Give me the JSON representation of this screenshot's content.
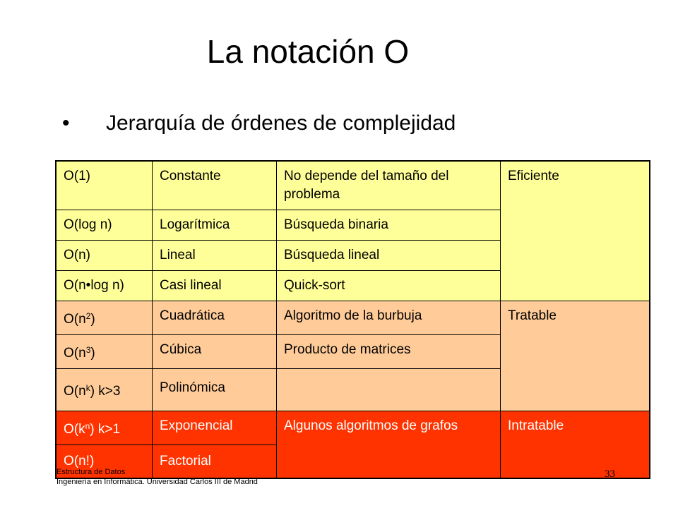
{
  "title": "La notación O",
  "bullet": "•",
  "subtitle": "Jerarquía de órdenes de complejidad",
  "colors": {
    "efficient": "#ffff99",
    "tractable": "#ffcc99",
    "intractable": "#ff3300"
  },
  "rows": [
    {
      "order": "O(1)",
      "name": "Constante",
      "example": "No depende del tamaño del problema",
      "class": "Eficiente"
    },
    {
      "order": "O(log n)",
      "name": "Logarítmica",
      "example": "Búsqueda binaria"
    },
    {
      "order": "O(n)",
      "name": "Lineal",
      "example": "Búsqueda lineal"
    },
    {
      "order": "O(n•log n)",
      "name": "Casi lineal",
      "example": "Quick-sort"
    },
    {
      "order_base": "O(n",
      "order_sup": "2",
      "order_tail": ")",
      "name": "Cuadrática",
      "example": "Algoritmo de la burbuja",
      "class": "Tratable"
    },
    {
      "order_base": "O(n",
      "order_sup": "3",
      "order_tail": ")",
      "name": "Cúbica",
      "example": "Producto de matrices"
    },
    {
      "order_base": "O(n",
      "order_sup": "k",
      "order_tail": ") k>3",
      "name": "Polinómica",
      "example": ""
    },
    {
      "order_base": "O(k",
      "order_sup": "n",
      "order_tail": ") k>1",
      "name": "Exponencial",
      "example": "Algunos algoritmos de grafos",
      "class": "Intratable"
    },
    {
      "order": "O(n!)",
      "name": "Factorial"
    }
  ],
  "footer": {
    "line1": "Estructura de Datos",
    "line2": "Ingeniería en Informática. Universidad Carlos III de Madrid"
  },
  "page_number": "33"
}
